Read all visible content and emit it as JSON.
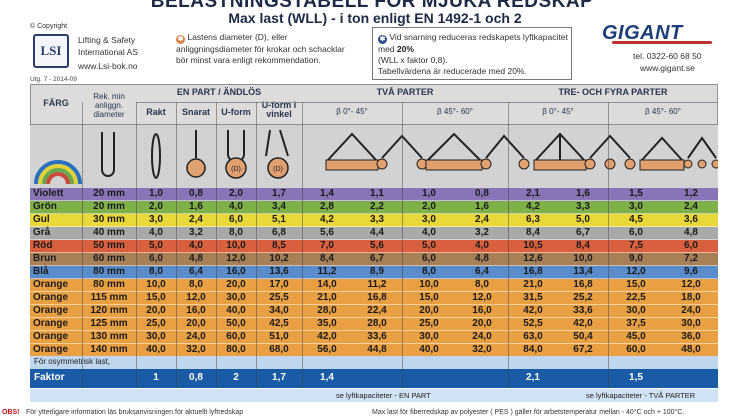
{
  "header": {
    "title": "BELASTNINGSTABELL FÖR MJUKA REDSKAP",
    "subtitle": "Max last (WLL) - i ton enligt EN 1492-1 och 2",
    "copyright": "© Copyright",
    "company_line1": "Lifting & Safety",
    "company_line2": "International AS",
    "company_web": "www.Lsi-bok.no",
    "logo_text": "LSI",
    "edition": "Utg. 7 - 2014-09",
    "note1": "Lastens diameter (D), eller anliggningsdiameter för krokar och schacklar bör minst vara enligt rekommendation.",
    "note2_a": "Vid snarning reduceras redskapets lyftkapacitet med",
    "note2_b": "20%",
    "note2_c": "(WLL x faktor 0,8).",
    "note2_d": "Tabellvärdena är reducerade med 20%.",
    "brand": "GIGANT",
    "tel": "tel. 0322-60 68 50",
    "brand_web": "www.gigant.se"
  },
  "columns": {
    "farg": "FÄRG",
    "rek": "Rek. min anliggn. diameter",
    "en_part": "EN PART / ÄNDLÖS",
    "rakt": "Rakt",
    "snarat": "Snarat",
    "uform": "U-form",
    "uform_vinkel": "U-form i vinkel",
    "uform_angle": "0-30°",
    "tva_parter": "TVÅ PARTER",
    "tre_fyra": "TRE- OCH FYRA PARTER",
    "angle_0_45": "β 0°- 45°",
    "angle_45_60": "β 45°- 60°"
  },
  "rows": [
    {
      "color": "Violett",
      "dia": "20 mm",
      "v": [
        "1,0",
        "0,8",
        "2,0",
        "1,7",
        "1,4",
        "1,1",
        "1,0",
        "0,8",
        "2,1",
        "1,6",
        "1,5",
        "1,2"
      ],
      "bg": "#8a74b8"
    },
    {
      "color": "Grön",
      "dia": "20 mm",
      "v": [
        "2,0",
        "1,6",
        "4,0",
        "3,4",
        "2,8",
        "2,2",
        "2,0",
        "1,6",
        "4,2",
        "3,3",
        "3,0",
        "2,4"
      ],
      "bg": "#7fb04a"
    },
    {
      "color": "Gul",
      "dia": "30 mm",
      "v": [
        "3,0",
        "2,4",
        "6,0",
        "5,1",
        "4,2",
        "3,3",
        "3,0",
        "2,4",
        "6,3",
        "5,0",
        "4,5",
        "3,6"
      ],
      "bg": "#e8d83a"
    },
    {
      "color": "Grå",
      "dia": "40 mm",
      "v": [
        "4,0",
        "3,2",
        "8,0",
        "6,8",
        "5,6",
        "4,4",
        "4,0",
        "3,2",
        "8,4",
        "6,7",
        "6,0",
        "4,8"
      ],
      "bg": "#a9a9a9"
    },
    {
      "color": "Röd",
      "dia": "50 mm",
      "v": [
        "5,0",
        "4,0",
        "10,0",
        "8,5",
        "7,0",
        "5,6",
        "5,0",
        "4,0",
        "10,5",
        "8,4",
        "7,5",
        "6,0"
      ],
      "bg": "#d9603e"
    },
    {
      "color": "Brun",
      "dia": "60 mm",
      "v": [
        "6,0",
        "4,8",
        "12,0",
        "10,2",
        "8,4",
        "6,7",
        "6,0",
        "4,8",
        "12,6",
        "10,0",
        "9,0",
        "7,2"
      ],
      "bg": "#a88058"
    },
    {
      "color": "Blå",
      "dia": "80 mm",
      "v": [
        "8,0",
        "6,4",
        "16,0",
        "13,6",
        "11,2",
        "8,9",
        "8,0",
        "6,4",
        "16,8",
        "13,4",
        "12,0",
        "9,6"
      ],
      "bg": "#5a8ccc"
    },
    {
      "color": "Orange",
      "dia": "80 mm",
      "v": [
        "10,0",
        "8,0",
        "20,0",
        "17,0",
        "14,0",
        "11,2",
        "10,0",
        "8,0",
        "21,0",
        "16,8",
        "15,0",
        "12,0"
      ],
      "bg": "#e9a043"
    },
    {
      "color": "Orange",
      "dia": "115 mm",
      "v": [
        "15,0",
        "12,0",
        "30,0",
        "25,5",
        "21,0",
        "16,8",
        "15,0",
        "12,0",
        "31,5",
        "25,2",
        "22,5",
        "18,0"
      ],
      "bg": "#e9a043"
    },
    {
      "color": "Orange",
      "dia": "120 mm",
      "v": [
        "20,0",
        "16,0",
        "40,0",
        "34,0",
        "28,0",
        "22,4",
        "20,0",
        "16,0",
        "42,0",
        "33,6",
        "30,0",
        "24,0"
      ],
      "bg": "#e9a043"
    },
    {
      "color": "Orange",
      "dia": "125 mm",
      "v": [
        "25,0",
        "20,0",
        "50,0",
        "42,5",
        "35,0",
        "28,0",
        "25,0",
        "20,0",
        "52,5",
        "42,0",
        "37,5",
        "30,0"
      ],
      "bg": "#e9a043"
    },
    {
      "color": "Orange",
      "dia": "130 mm",
      "v": [
        "30,0",
        "24,0",
        "60,0",
        "51,0",
        "42,0",
        "33,6",
        "30,0",
        "24,0",
        "63,0",
        "50,4",
        "45,0",
        "36,0"
      ],
      "bg": "#e9a043"
    },
    {
      "color": "Orange",
      "dia": "140 mm",
      "v": [
        "40,0",
        "32,0",
        "80,0",
        "68,0",
        "56,0",
        "44,8",
        "40,0",
        "32,0",
        "84,0",
        "67,2",
        "60,0",
        "48,0"
      ],
      "bg": "#e9a043"
    }
  ],
  "osym": {
    "label": "För osymmetrisk last,"
  },
  "factor": {
    "label": "Faktor",
    "values": [
      "1",
      "0,8",
      "2",
      "1,7",
      "1,4",
      "",
      "",
      "",
      "2,1",
      "",
      "1,5",
      ""
    ]
  },
  "footnote": {
    "en_part": "se lyftkapaciteter - EN PART",
    "tva_parter": "se lyftkapaciteter - TVÅ PARTER"
  },
  "bottom": {
    "obs": "OBS!",
    "left": "För ytterligare information läs bruksanvisningen för aktuellt lyftredskap",
    "right": "Max last för fiberredskap av polyester ( PES ) gäller för arbetstemperatur mellan - 40°C och + 100°C."
  },
  "colors": {
    "header_bg": "#dcdcdc",
    "footer_blue": "#1a5ba6",
    "accent_orange": "#d9854a",
    "accent_blue": "#2a4a8a"
  }
}
